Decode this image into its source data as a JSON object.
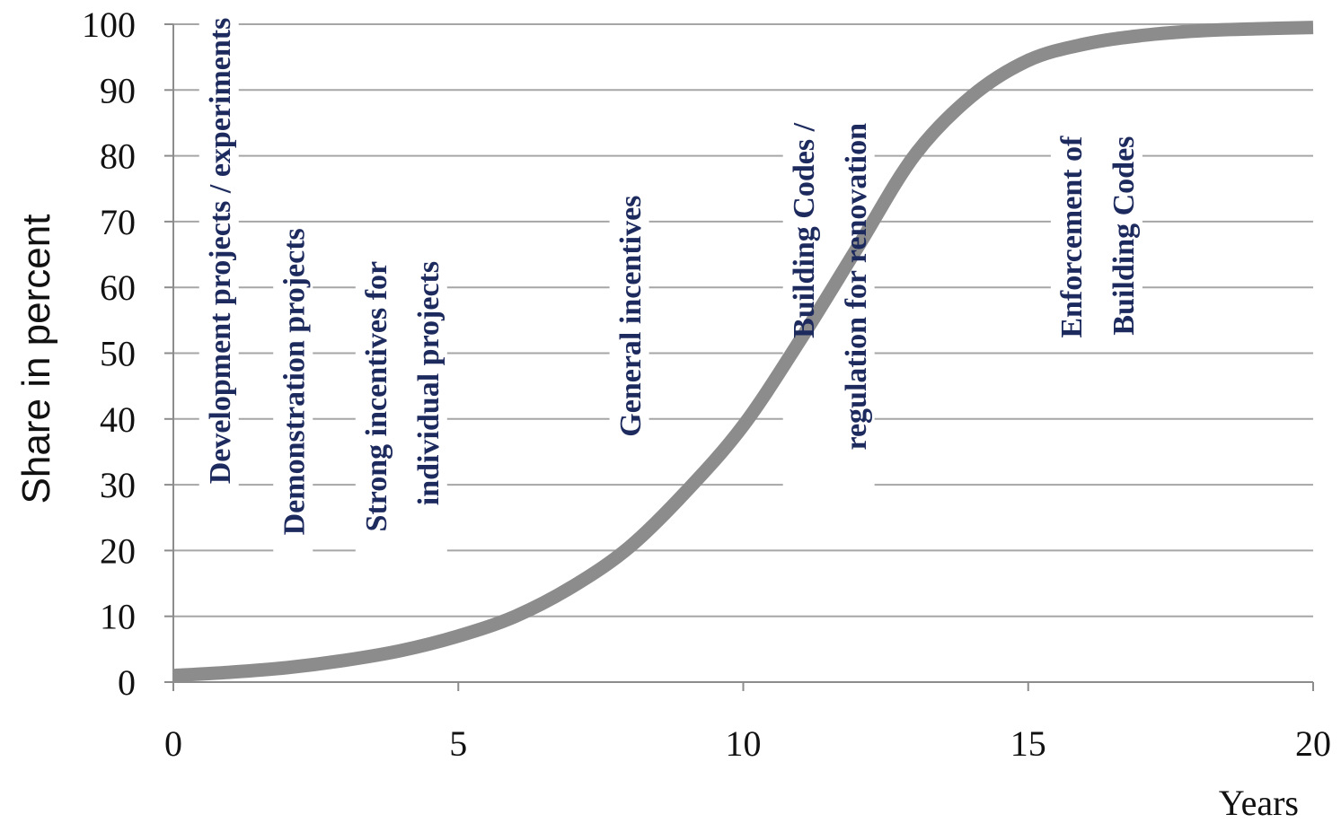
{
  "chart_data": {
    "type": "line",
    "title": "",
    "xlabel": "Years",
    "ylabel": "Share in percent",
    "xlim": [
      0,
      20
    ],
    "ylim": [
      0,
      100
    ],
    "x_ticks": [
      "0",
      "5",
      "10",
      "15",
      "20"
    ],
    "y_ticks": [
      "0",
      "10",
      "20",
      "30",
      "40",
      "50",
      "60",
      "70",
      "80",
      "90",
      "100"
    ],
    "grid": "horizontal",
    "legend": "none",
    "series": [
      {
        "color": "#8c8c8c",
        "x": [
          0,
          1,
          2,
          3,
          4,
          5,
          6,
          7,
          8,
          9,
          10,
          11,
          12,
          13,
          14,
          15,
          16,
          17,
          18,
          19,
          20
        ],
        "y": [
          1,
          1.5,
          2.2,
          3.3,
          4.8,
          7,
          10,
          14.5,
          20.5,
          29,
          39,
          52,
          66,
          80,
          89,
          94.5,
          97,
          98.3,
          99,
          99.3,
          99.5
        ]
      }
    ],
    "phase_labels": [
      {
        "lines": [
          "Development projects / experiments"
        ],
        "x": 0.8,
        "top_y": 101
      },
      {
        "lines": [
          "Demonstration projects"
        ],
        "x": 2.1,
        "top_y": 69
      },
      {
        "lines": [
          "Strong incentives for",
          "individual projects"
        ],
        "x": 4.0,
        "top_y": 64
      },
      {
        "lines": [
          "General incentives"
        ],
        "x": 8.0,
        "top_y": 74
      },
      {
        "lines": [
          "Building Codes /",
          "regulation for renovation"
        ],
        "x": 11.5,
        "top_y": 85
      },
      {
        "lines": [
          "Enforcement of",
          "Building Codes"
        ],
        "x": 16.2,
        "top_y": 83
      }
    ]
  }
}
